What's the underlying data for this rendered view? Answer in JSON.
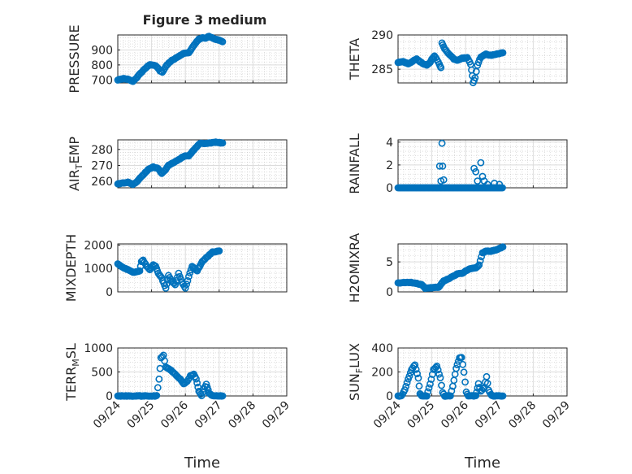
{
  "figure": {
    "title": "Figure 3 medium",
    "xlabel": "Time",
    "x_tick_labels": [
      "09/24",
      "09/25",
      "09/26",
      "09/27",
      "09/28",
      "09/29"
    ],
    "marker_color": "#0072BD"
  },
  "chart_data": [
    {
      "type": "scatter",
      "name": "PRESSURE",
      "ylabel": "PRESSURE",
      "ylim": [
        680,
        1000
      ],
      "yticks": [
        700,
        800,
        900
      ],
      "xlim": [
        0,
        5
      ],
      "grid": true,
      "keypoints": [
        [
          0,
          700
        ],
        [
          0.1,
          705
        ],
        [
          0.2,
          710
        ],
        [
          0.35,
          700
        ],
        [
          0.45,
          690
        ],
        [
          0.55,
          712
        ],
        [
          0.65,
          740
        ],
        [
          0.75,
          762
        ],
        [
          0.85,
          785
        ],
        [
          0.95,
          802
        ],
        [
          1.05,
          800
        ],
        [
          1.15,
          790
        ],
        [
          1.25,
          760
        ],
        [
          1.32,
          752
        ],
        [
          1.45,
          800
        ],
        [
          1.6,
          830
        ],
        [
          1.75,
          850
        ],
        [
          1.9,
          872
        ],
        [
          2.0,
          880
        ],
        [
          2.1,
          880
        ],
        [
          2.25,
          930
        ],
        [
          2.4,
          972
        ],
        [
          2.5,
          980
        ],
        [
          2.6,
          980
        ],
        [
          2.7,
          990
        ],
        [
          2.85,
          975
        ],
        [
          3.0,
          965
        ],
        [
          3.1,
          955
        ]
      ]
    },
    {
      "type": "scatter",
      "name": "THETA",
      "ylabel": "THETA",
      "ylim": [
        283,
        290
      ],
      "yticks": [
        285,
        290
      ],
      "xlim": [
        0,
        5
      ],
      "grid": true,
      "keypoints": [
        [
          0,
          286.0
        ],
        [
          0.15,
          286.1
        ],
        [
          0.3,
          285.8
        ],
        [
          0.45,
          286.2
        ],
        [
          0.55,
          286.5
        ],
        [
          0.65,
          286.1
        ],
        [
          0.75,
          285.8
        ],
        [
          0.85,
          285.6
        ],
        [
          0.95,
          286.0
        ],
        [
          1.0,
          286.5
        ],
        [
          1.08,
          286.9
        ],
        [
          1.15,
          286.4
        ],
        [
          1.22,
          285.7
        ],
        [
          1.27,
          285.2
        ],
        [
          1.3,
          288.8
        ],
        [
          1.38,
          288.0
        ],
        [
          1.45,
          287.5
        ],
        [
          1.55,
          287.0
        ],
        [
          1.65,
          286.5
        ],
        [
          1.75,
          286.3
        ],
        [
          1.9,
          286.6
        ],
        [
          2.05,
          286.7
        ],
        [
          2.15,
          285.7
        ],
        [
          2.2,
          284.0
        ],
        [
          2.22,
          283.0
        ],
        [
          2.28,
          283.8
        ],
        [
          2.35,
          285.6
        ],
        [
          2.45,
          286.8
        ],
        [
          2.6,
          287.2
        ],
        [
          2.75,
          287.0
        ],
        [
          2.9,
          287.2
        ],
        [
          3.1,
          287.4
        ]
      ]
    },
    {
      "type": "scatter",
      "name": "AIR_TEMP",
      "ylabel": "AIR_TEMP",
      "ylim": [
        256,
        286
      ],
      "yticks": [
        260,
        270,
        280
      ],
      "xlim": [
        0,
        5
      ],
      "grid": true,
      "keypoints": [
        [
          0,
          258.5
        ],
        [
          0.15,
          259.0
        ],
        [
          0.3,
          259.5
        ],
        [
          0.45,
          258.0
        ],
        [
          0.55,
          259.5
        ],
        [
          0.7,
          263.0
        ],
        [
          0.9,
          267.5
        ],
        [
          1.05,
          269.0
        ],
        [
          1.2,
          268.0
        ],
        [
          1.3,
          265.0
        ],
        [
          1.38,
          266.5
        ],
        [
          1.5,
          270.0
        ],
        [
          1.7,
          272.5
        ],
        [
          1.9,
          275.0
        ],
        [
          2.0,
          276.0
        ],
        [
          2.1,
          276.0
        ],
        [
          2.3,
          281.0
        ],
        [
          2.45,
          284.0
        ],
        [
          2.55,
          283.5
        ],
        [
          2.7,
          284.0
        ],
        [
          2.9,
          284.5
        ],
        [
          3.1,
          284.0
        ]
      ]
    },
    {
      "type": "scatter",
      "name": "RAINFALL",
      "ylabel": "RAINFALL",
      "ylim": [
        0,
        4.2
      ],
      "yticks": [
        0,
        2,
        4
      ],
      "xlim": [
        0,
        5
      ],
      "grid": true,
      "baseline": 0,
      "spikes": [
        [
          1.23,
          1.9
        ],
        [
          1.27,
          0.6
        ],
        [
          1.3,
          3.9
        ],
        [
          1.32,
          1.9
        ],
        [
          1.35,
          0.7
        ],
        [
          2.25,
          1.7
        ],
        [
          2.3,
          1.4
        ],
        [
          2.35,
          0.6
        ],
        [
          2.45,
          2.2
        ],
        [
          2.5,
          1.0
        ],
        [
          2.55,
          0.6
        ],
        [
          2.65,
          0.3
        ],
        [
          2.85,
          0.4
        ],
        [
          3.0,
          0.3
        ]
      ]
    },
    {
      "type": "scatter",
      "name": "MIXDEPTH",
      "ylabel": "MIXDEPTH",
      "ylim": [
        0,
        2050
      ],
      "yticks": [
        0,
        1000,
        2000
      ],
      "xlim": [
        0,
        5
      ],
      "grid": true,
      "keypoints": [
        [
          0,
          1200
        ],
        [
          0.15,
          1050
        ],
        [
          0.3,
          950
        ],
        [
          0.45,
          850
        ],
        [
          0.55,
          850
        ],
        [
          0.65,
          900
        ],
        [
          0.7,
          1300
        ],
        [
          0.75,
          1350
        ],
        [
          0.85,
          1100
        ],
        [
          0.95,
          950
        ],
        [
          1.05,
          1150
        ],
        [
          1.12,
          1100
        ],
        [
          1.2,
          800
        ],
        [
          1.3,
          600
        ],
        [
          1.42,
          150
        ],
        [
          1.5,
          700
        ],
        [
          1.6,
          450
        ],
        [
          1.7,
          300
        ],
        [
          1.8,
          800
        ],
        [
          1.9,
          400
        ],
        [
          2.0,
          150
        ],
        [
          2.1,
          650
        ],
        [
          2.2,
          1100
        ],
        [
          2.35,
          900
        ],
        [
          2.5,
          1300
        ],
        [
          2.65,
          1500
        ],
        [
          2.8,
          1700
        ],
        [
          3.0,
          1750
        ]
      ]
    },
    {
      "type": "scatter",
      "name": "H2OMIXRA",
      "ylabel": "H2OMIXRA",
      "ylim": [
        0,
        8
      ],
      "yticks": [
        0,
        5
      ],
      "xlim": [
        0,
        5
      ],
      "grid": true,
      "keypoints": [
        [
          0,
          1.5
        ],
        [
          0.3,
          1.6
        ],
        [
          0.5,
          1.5
        ],
        [
          0.7,
          1.2
        ],
        [
          0.8,
          0.6
        ],
        [
          1.0,
          0.7
        ],
        [
          1.2,
          0.8
        ],
        [
          1.35,
          1.8
        ],
        [
          1.5,
          2.2
        ],
        [
          1.6,
          2.5
        ],
        [
          1.75,
          3.0
        ],
        [
          1.9,
          3.1
        ],
        [
          2.0,
          3.5
        ],
        [
          2.1,
          3.8
        ],
        [
          2.3,
          4.0
        ],
        [
          2.4,
          4.5
        ],
        [
          2.5,
          6.5
        ],
        [
          2.6,
          6.8
        ],
        [
          2.75,
          6.8
        ],
        [
          2.9,
          7.0
        ],
        [
          3.1,
          7.5
        ]
      ]
    },
    {
      "type": "scatter",
      "name": "TERR_MSL",
      "ylabel": "TERR_MSL",
      "ylim": [
        0,
        1000
      ],
      "yticks": [
        0,
        500,
        1000
      ],
      "xlim": [
        0,
        5
      ],
      "grid": true,
      "keypoints": [
        [
          0,
          0
        ],
        [
          1.1,
          0
        ],
        [
          1.15,
          5
        ],
        [
          1.22,
          350
        ],
        [
          1.28,
          800
        ],
        [
          1.35,
          850
        ],
        [
          1.42,
          600
        ],
        [
          1.55,
          550
        ],
        [
          1.7,
          450
        ],
        [
          1.85,
          350
        ],
        [
          1.95,
          250
        ],
        [
          2.05,
          300
        ],
        [
          2.15,
          420
        ],
        [
          2.25,
          450
        ],
        [
          2.32,
          350
        ],
        [
          2.4,
          100
        ],
        [
          2.48,
          10
        ],
        [
          2.55,
          150
        ],
        [
          2.62,
          250
        ],
        [
          2.7,
          60
        ],
        [
          2.8,
          5
        ],
        [
          3.1,
          0
        ]
      ]
    },
    {
      "type": "scatter",
      "name": "SUN_FLUX",
      "ylabel": "SUN_FLUX",
      "ylim": [
        0,
        400
      ],
      "yticks": [
        0,
        200,
        400
      ],
      "xlim": [
        0,
        5
      ],
      "grid": true,
      "keypoints": [
        [
          0,
          0
        ],
        [
          0.1,
          0
        ],
        [
          0.2,
          50
        ],
        [
          0.3,
          140
        ],
        [
          0.4,
          220
        ],
        [
          0.5,
          260
        ],
        [
          0.6,
          150
        ],
        [
          0.65,
          20
        ],
        [
          0.7,
          0
        ],
        [
          0.85,
          0
        ],
        [
          0.95,
          100
        ],
        [
          1.05,
          220
        ],
        [
          1.15,
          250
        ],
        [
          1.25,
          150
        ],
        [
          1.32,
          30
        ],
        [
          1.38,
          0
        ],
        [
          1.55,
          0
        ],
        [
          1.62,
          80
        ],
        [
          1.72,
          230
        ],
        [
          1.82,
          320
        ],
        [
          1.88,
          320
        ],
        [
          1.95,
          200
        ],
        [
          2.02,
          30
        ],
        [
          2.08,
          0
        ],
        [
          2.3,
          0
        ],
        [
          2.38,
          100
        ],
        [
          2.45,
          40
        ],
        [
          2.55,
          70
        ],
        [
          2.62,
          160
        ],
        [
          2.68,
          50
        ],
        [
          2.75,
          10
        ],
        [
          2.8,
          0
        ],
        [
          3.1,
          0
        ]
      ]
    }
  ]
}
